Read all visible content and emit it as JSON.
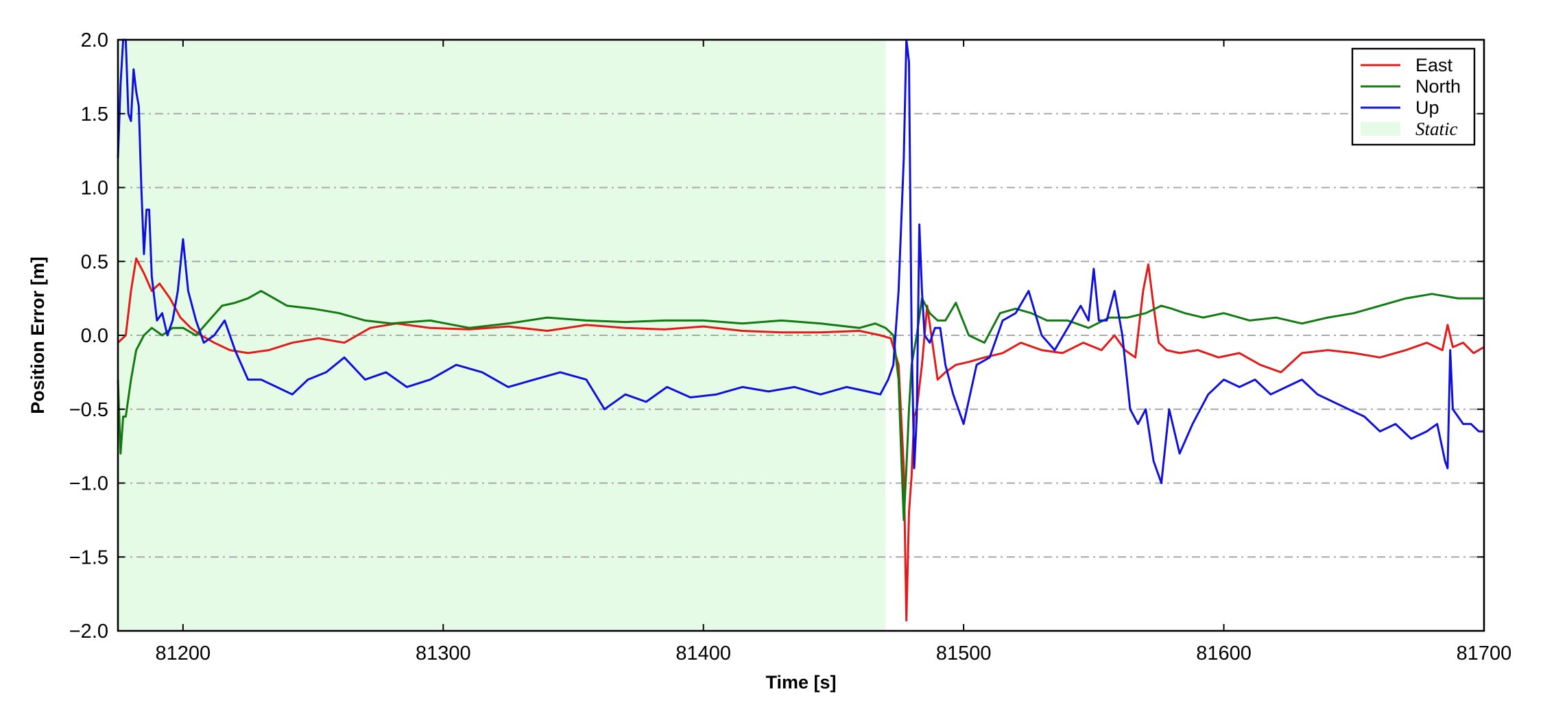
{
  "chart_data": {
    "type": "line",
    "title": "",
    "xlabel": "Time [s]",
    "ylabel": "Position Error [m]",
    "xlim": [
      81175,
      81700
    ],
    "ylim": [
      -2.0,
      2.0
    ],
    "xticks": [
      81200,
      81300,
      81400,
      81500,
      81600,
      81700
    ],
    "xtick_labels": [
      "81200",
      "81300",
      "81400",
      "81500",
      "81600",
      "81700"
    ],
    "yticks": [
      -2.0,
      -1.5,
      -1.0,
      -0.5,
      0.0,
      0.5,
      1.0,
      1.5,
      2.0
    ],
    "ytick_labels": [
      "−2.0",
      "−1.5",
      "−1.0",
      "−0.5",
      "0.0",
      "0.5",
      "1.0",
      "1.5",
      "2.0"
    ],
    "grid": "horizontal dash-dot",
    "legend": {
      "placement": "top-right",
      "entries": [
        {
          "label": "East",
          "kind": "line",
          "color": "#e31a1a"
        },
        {
          "label": "North",
          "kind": "line",
          "color": "#117a11"
        },
        {
          "label": "Up",
          "kind": "line",
          "color": "#1010dd"
        },
        {
          "label": "Static",
          "kind": "patch",
          "color": "#e6fbe6"
        }
      ]
    },
    "shaded_region": {
      "label": "Static",
      "x": [
        81175,
        81470
      ],
      "color": "#e6fbe6"
    },
    "series": [
      {
        "name": "East",
        "color": "#e31a1a",
        "x": [
          81175,
          81178,
          81180,
          81182,
          81185,
          81188,
          81191,
          81195,
          81199,
          81203,
          81207,
          81212,
          81218,
          81225,
          81233,
          81242,
          81252,
          81262,
          81272,
          81282,
          81295,
          81310,
          81325,
          81340,
          81355,
          81370,
          81385,
          81400,
          81415,
          81430,
          81445,
          81460,
          81468,
          81472,
          81475,
          81477,
          81478,
          81479,
          81480,
          81481,
          81482,
          81484,
          81486,
          81488,
          81490,
          81493,
          81497,
          81502,
          81508,
          81515,
          81522,
          81530,
          81538,
          81546,
          81553,
          81558,
          81562,
          81566,
          81569,
          81571,
          81573,
          81575,
          81578,
          81583,
          81590,
          81598,
          81606,
          81614,
          81622,
          81630,
          81640,
          81650,
          81660,
          81670,
          81678,
          81684,
          81686,
          81688,
          81692,
          81696,
          81700
        ],
        "y": [
          -0.05,
          0.0,
          0.3,
          0.52,
          0.42,
          0.3,
          0.35,
          0.25,
          0.12,
          0.05,
          0.0,
          -0.05,
          -0.1,
          -0.12,
          -0.1,
          -0.05,
          -0.02,
          -0.05,
          0.05,
          0.08,
          0.05,
          0.04,
          0.06,
          0.03,
          0.07,
          0.05,
          0.04,
          0.06,
          0.03,
          0.02,
          0.02,
          0.03,
          0.0,
          -0.02,
          -0.2,
          -0.9,
          -1.93,
          -1.2,
          -0.95,
          -0.55,
          -0.5,
          -0.2,
          0.2,
          -0.05,
          -0.3,
          -0.25,
          -0.2,
          -0.18,
          -0.15,
          -0.12,
          -0.05,
          -0.1,
          -0.12,
          -0.05,
          -0.1,
          0.0,
          -0.1,
          -0.15,
          0.3,
          0.48,
          0.2,
          -0.05,
          -0.1,
          -0.12,
          -0.1,
          -0.15,
          -0.12,
          -0.2,
          -0.25,
          -0.12,
          -0.1,
          -0.12,
          -0.15,
          -0.1,
          -0.05,
          -0.1,
          0.07,
          -0.08,
          -0.05,
          -0.12,
          -0.08
        ]
      },
      {
        "name": "North",
        "color": "#117a11",
        "x": [
          81175,
          81176,
          81177,
          81178,
          81180,
          81182,
          81185,
          81188,
          81192,
          81196,
          81200,
          81205,
          81210,
          81215,
          81220,
          81225,
          81230,
          81235,
          81240,
          81250,
          81260,
          81270,
          81280,
          81295,
          81310,
          81325,
          81340,
          81355,
          81370,
          81385,
          81400,
          81415,
          81430,
          81445,
          81460,
          81466,
          81470,
          81473,
          81475,
          81476,
          81477,
          81478,
          81479,
          81480,
          81482,
          81484,
          81487,
          81490,
          81493,
          81497,
          81502,
          81508,
          81514,
          81520,
          81526,
          81532,
          81540,
          81548,
          81556,
          81563,
          81570,
          81576,
          81580,
          81585,
          81592,
          81600,
          81610,
          81620,
          81630,
          81640,
          81650,
          81660,
          81670,
          81680,
          81690,
          81700
        ],
        "y": [
          -0.3,
          -0.8,
          -0.55,
          -0.55,
          -0.3,
          -0.1,
          0.0,
          0.05,
          0.0,
          0.05,
          0.05,
          0.0,
          0.1,
          0.2,
          0.22,
          0.25,
          0.3,
          0.25,
          0.2,
          0.18,
          0.15,
          0.1,
          0.08,
          0.1,
          0.05,
          0.08,
          0.12,
          0.1,
          0.09,
          0.1,
          0.1,
          0.08,
          0.1,
          0.08,
          0.05,
          0.08,
          0.05,
          0.0,
          -0.3,
          -0.8,
          -1.25,
          -0.9,
          -0.5,
          -0.2,
          0.0,
          0.25,
          0.15,
          0.1,
          0.1,
          0.22,
          0.0,
          -0.05,
          0.15,
          0.18,
          0.15,
          0.1,
          0.1,
          0.05,
          0.12,
          0.12,
          0.15,
          0.2,
          0.18,
          0.15,
          0.12,
          0.15,
          0.1,
          0.12,
          0.08,
          0.12,
          0.15,
          0.2,
          0.25,
          0.28,
          0.25,
          0.25
        ]
      },
      {
        "name": "Up",
        "color": "#1010dd",
        "x": [
          81175,
          81176,
          81177,
          81178,
          81179,
          81180,
          81181,
          81182,
          81183,
          81184,
          81185,
          81186,
          81187,
          81188,
          81190,
          81192,
          81194,
          81196,
          81198,
          81200,
          81202,
          81205,
          81208,
          81212,
          81216,
          81220,
          81225,
          81230,
          81236,
          81242,
          81248,
          81255,
          81262,
          81270,
          81278,
          81286,
          81295,
          81305,
          81315,
          81325,
          81335,
          81345,
          81355,
          81362,
          81370,
          81378,
          81386,
          81395,
          81405,
          81415,
          81425,
          81435,
          81445,
          81455,
          81463,
          81468,
          81471,
          81473,
          81475,
          81477,
          81478,
          81479,
          81480,
          81481,
          81482,
          81483,
          81484,
          81485,
          81487,
          81489,
          81491,
          81493,
          81496,
          81500,
          81505,
          81510,
          81515,
          81520,
          81525,
          81530,
          81535,
          81540,
          81545,
          81548,
          81550,
          81552,
          81555,
          81558,
          81561,
          81564,
          81567,
          81570,
          81573,
          81576,
          81579,
          81583,
          81588,
          81594,
          81600,
          81606,
          81612,
          81618,
          81624,
          81630,
          81636,
          81642,
          81648,
          81654,
          81660,
          81666,
          81672,
          81678,
          81682,
          81685,
          81686,
          81687,
          81688,
          81690,
          81692,
          81695,
          81698,
          81700
        ],
        "y": [
          1.2,
          1.7,
          2.0,
          2.0,
          1.5,
          1.45,
          1.8,
          1.65,
          1.55,
          1.0,
          0.55,
          0.85,
          0.85,
          0.4,
          0.1,
          0.15,
          0.0,
          0.1,
          0.3,
          0.65,
          0.3,
          0.1,
          -0.05,
          0.0,
          0.1,
          -0.1,
          -0.3,
          -0.3,
          -0.35,
          -0.4,
          -0.3,
          -0.25,
          -0.15,
          -0.3,
          -0.25,
          -0.35,
          -0.3,
          -0.2,
          -0.25,
          -0.35,
          -0.3,
          -0.25,
          -0.3,
          -0.5,
          -0.4,
          -0.45,
          -0.35,
          -0.42,
          -0.4,
          -0.35,
          -0.38,
          -0.35,
          -0.4,
          -0.35,
          -0.38,
          -0.4,
          -0.3,
          -0.2,
          0.3,
          1.2,
          2.0,
          1.85,
          0.0,
          -0.9,
          -0.55,
          0.75,
          0.3,
          0.0,
          -0.05,
          0.05,
          0.05,
          -0.2,
          -0.4,
          -0.6,
          -0.2,
          -0.15,
          0.1,
          0.15,
          0.3,
          0.0,
          -0.1,
          0.05,
          0.2,
          0.1,
          0.45,
          0.1,
          0.1,
          0.3,
          0.0,
          -0.5,
          -0.6,
          -0.5,
          -0.85,
          -1.0,
          -0.5,
          -0.8,
          -0.6,
          -0.4,
          -0.3,
          -0.35,
          -0.3,
          -0.4,
          -0.35,
          -0.3,
          -0.4,
          -0.45,
          -0.5,
          -0.55,
          -0.65,
          -0.6,
          -0.7,
          -0.65,
          -0.6,
          -0.85,
          -0.9,
          -0.1,
          -0.5,
          -0.55,
          -0.6,
          -0.6,
          -0.65,
          -0.65
        ]
      }
    ]
  }
}
